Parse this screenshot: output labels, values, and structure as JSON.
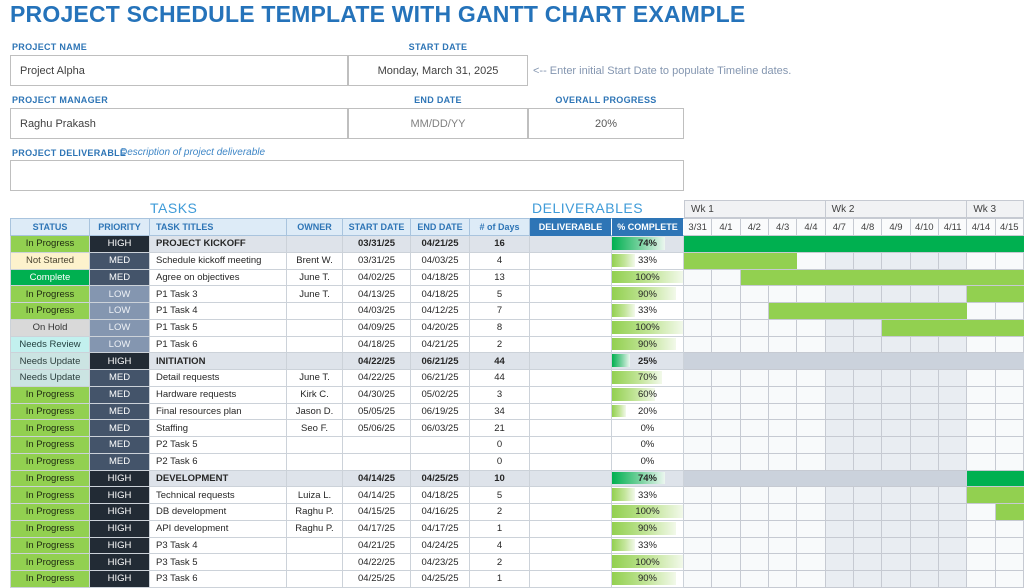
{
  "title": "PROJECT SCHEDULE TEMPLATE WITH GANTT CHART EXAMPLE",
  "form": {
    "project_name_label": "PROJECT NAME",
    "project_name": "Project Alpha",
    "start_date_label": "START DATE",
    "start_date": "Monday, March 31, 2025",
    "start_date_note": "<-- Enter initial Start Date to populate Timeline dates.",
    "project_manager_label": "PROJECT MANAGER",
    "project_manager": "Raghu Prakash",
    "end_date_label": "END DATE",
    "end_date": "MM/DD/YY",
    "overall_progress_label": "OVERALL PROGRESS",
    "overall_progress": "20%",
    "project_deliverable_label": "PROJECT DELIVERABLE",
    "project_deliverable_hint": "Description of project deliverable",
    "project_deliverable": ""
  },
  "sections": {
    "tasks": "TASKS",
    "deliverables": "DELIVERABLES"
  },
  "table": {
    "headers": [
      "STATUS",
      "PRIORITY",
      "TASK TITLES",
      "OWNER",
      "START DATE",
      "END DATE",
      "# of Days",
      "DELIVERABLE",
      "% COMPLETE"
    ],
    "rows": [
      {
        "status": "In Progress",
        "priority": "HIGH",
        "task": "PROJECT KICKOFF",
        "owner": "",
        "start": "03/31/25",
        "end": "04/21/25",
        "days": "16",
        "deliverable": "",
        "pct": 74,
        "pct_label": "74%",
        "summary": true,
        "bar": {
          "from": 0,
          "to": 12,
          "kind": "dark"
        }
      },
      {
        "status": "Not Started",
        "priority": "MED",
        "task": "Schedule kickoff meeting",
        "owner": "Brent W.",
        "start": "03/31/25",
        "end": "04/03/25",
        "days": "4",
        "deliverable": "",
        "pct": 33,
        "pct_label": "33%",
        "summary": false,
        "bar": {
          "from": 0,
          "to": 4,
          "kind": "light"
        }
      },
      {
        "status": "Complete",
        "priority": "MED",
        "task": "Agree on objectives",
        "owner": "June T.",
        "start": "04/02/25",
        "end": "04/18/25",
        "days": "13",
        "deliverable": "",
        "pct": 100,
        "pct_label": "100%",
        "summary": false,
        "bar": {
          "from": 2,
          "to": 12,
          "kind": "light"
        }
      },
      {
        "status": "In Progress",
        "priority": "LOW",
        "task": "P1 Task 3",
        "owner": "June T.",
        "start": "04/13/25",
        "end": "04/18/25",
        "days": "5",
        "deliverable": "",
        "pct": 90,
        "pct_label": "90%",
        "summary": false,
        "bar": {
          "from": 10,
          "to": 12,
          "kind": "light"
        }
      },
      {
        "status": "In Progress",
        "priority": "LOW",
        "task": "P1 Task 4",
        "owner": "",
        "start": "04/03/25",
        "end": "04/12/25",
        "days": "7",
        "deliverable": "",
        "pct": 33,
        "pct_label": "33%",
        "summary": false,
        "bar": {
          "from": 3,
          "to": 10,
          "kind": "light"
        }
      },
      {
        "status": "On Hold",
        "priority": "LOW",
        "task": "P1 Task 5",
        "owner": "",
        "start": "04/09/25",
        "end": "04/20/25",
        "days": "8",
        "deliverable": "",
        "pct": 100,
        "pct_label": "100%",
        "summary": false,
        "bar": {
          "from": 7,
          "to": 12,
          "kind": "light"
        }
      },
      {
        "status": "Needs Review",
        "priority": "LOW",
        "task": "P1 Task 6",
        "owner": "",
        "start": "04/18/25",
        "end": "04/21/25",
        "days": "2",
        "deliverable": "",
        "pct": 90,
        "pct_label": "90%",
        "summary": false,
        "bar": null
      },
      {
        "status": "Needs Update",
        "priority": "HIGH",
        "task": "INITIATION",
        "owner": "",
        "start": "04/22/25",
        "end": "06/21/25",
        "days": "44",
        "deliverable": "",
        "pct": 25,
        "pct_label": "25%",
        "summary": true,
        "bar": null
      },
      {
        "status": "Needs Update",
        "priority": "MED",
        "task": "Detail requests",
        "owner": "June T.",
        "start": "04/22/25",
        "end": "06/21/25",
        "days": "44",
        "deliverable": "",
        "pct": 70,
        "pct_label": "70%",
        "summary": false,
        "bar": null
      },
      {
        "status": "In Progress",
        "priority": "MED",
        "task": "Hardware requests",
        "owner": "Kirk C.",
        "start": "04/30/25",
        "end": "05/02/25",
        "days": "3",
        "deliverable": "",
        "pct": 60,
        "pct_label": "60%",
        "summary": false,
        "bar": null
      },
      {
        "status": "In Progress",
        "priority": "MED",
        "task": "Final resources plan",
        "owner": "Jason D.",
        "start": "05/05/25",
        "end": "06/19/25",
        "days": "34",
        "deliverable": "",
        "pct": 20,
        "pct_label": "20%",
        "summary": false,
        "bar": null
      },
      {
        "status": "In Progress",
        "priority": "MED",
        "task": "Staffing",
        "owner": "Seo F.",
        "start": "05/06/25",
        "end": "06/03/25",
        "days": "21",
        "deliverable": "",
        "pct": 0,
        "pct_label": "0%",
        "summary": false,
        "bar": null
      },
      {
        "status": "In Progress",
        "priority": "MED",
        "task": "P2 Task 5",
        "owner": "",
        "start": "",
        "end": "",
        "days": "0",
        "deliverable": "",
        "pct": 0,
        "pct_label": "0%",
        "summary": false,
        "bar": null
      },
      {
        "status": "In Progress",
        "priority": "MED",
        "task": "P2 Task 6",
        "owner": "",
        "start": "",
        "end": "",
        "days": "0",
        "deliverable": "",
        "pct": 0,
        "pct_label": "0%",
        "summary": false,
        "bar": null
      },
      {
        "status": "In Progress",
        "priority": "HIGH",
        "task": "DEVELOPMENT",
        "owner": "",
        "start": "04/14/25",
        "end": "04/25/25",
        "days": "10",
        "deliverable": "",
        "pct": 74,
        "pct_label": "74%",
        "summary": true,
        "bar": {
          "from": 10,
          "to": 12,
          "kind": "dark"
        }
      },
      {
        "status": "In Progress",
        "priority": "HIGH",
        "task": "Technical requests",
        "owner": "Luiza L.",
        "start": "04/14/25",
        "end": "04/18/25",
        "days": "5",
        "deliverable": "",
        "pct": 33,
        "pct_label": "33%",
        "summary": false,
        "bar": {
          "from": 10,
          "to": 12,
          "kind": "light"
        }
      },
      {
        "status": "In Progress",
        "priority": "HIGH",
        "task": "DB development",
        "owner": "Raghu P.",
        "start": "04/15/25",
        "end": "04/16/25",
        "days": "2",
        "deliverable": "",
        "pct": 100,
        "pct_label": "100%",
        "summary": false,
        "bar": {
          "from": 11,
          "to": 12,
          "kind": "light"
        }
      },
      {
        "status": "In Progress",
        "priority": "HIGH",
        "task": "API development",
        "owner": "Raghu P.",
        "start": "04/17/25",
        "end": "04/17/25",
        "days": "1",
        "deliverable": "",
        "pct": 90,
        "pct_label": "90%",
        "summary": false,
        "bar": null
      },
      {
        "status": "In Progress",
        "priority": "HIGH",
        "task": "P3 Task 4",
        "owner": "",
        "start": "04/21/25",
        "end": "04/24/25",
        "days": "4",
        "deliverable": "",
        "pct": 33,
        "pct_label": "33%",
        "summary": false,
        "bar": null
      },
      {
        "status": "In Progress",
        "priority": "HIGH",
        "task": "P3 Task 5",
        "owner": "",
        "start": "04/22/25",
        "end": "04/23/25",
        "days": "2",
        "deliverable": "",
        "pct": 100,
        "pct_label": "100%",
        "summary": false,
        "bar": null
      },
      {
        "status": "In Progress",
        "priority": "HIGH",
        "task": "P3 Task 6",
        "owner": "",
        "start": "04/25/25",
        "end": "04/25/25",
        "days": "1",
        "deliverable": "",
        "pct": 90,
        "pct_label": "90%",
        "summary": false,
        "bar": null
      }
    ]
  },
  "gantt": {
    "weeks": [
      {
        "label": "Wk 1",
        "span": 5
      },
      {
        "label": "Wk 2",
        "span": 5
      },
      {
        "label": "Wk 3",
        "span": 2
      }
    ],
    "dates": [
      "3/31",
      "4/1",
      "4/2",
      "4/3",
      "4/4",
      "4/7",
      "4/8",
      "4/9",
      "4/10",
      "4/11",
      "4/14",
      "4/15"
    ],
    "shaded_week_index": 1
  },
  "colors": {
    "accent_blue": "#2E75B6",
    "title_blue": "#2573BA",
    "section_blue": "#3F9BD8",
    "header_fill": "#DDEBF7",
    "header_strong_fill": "#2E75B6",
    "dark_green": "#00B050",
    "light_green": "#92D050",
    "summary_row_fill": "#DEE3EA",
    "gantt_band": "#CBD2DC",
    "week_shade": "#E9EDF2",
    "status": {
      "In Progress": {
        "bg": "#92D050",
        "fg": "#1f2a12"
      },
      "Not Started": {
        "bg": "#FDF2CC",
        "fg": "#4a4430"
      },
      "Complete": {
        "bg": "#00B050",
        "fg": "#ffffff"
      },
      "On Hold": {
        "bg": "#D9D9D9",
        "fg": "#333333"
      },
      "Needs Review": {
        "bg": "#C2F0EE",
        "fg": "#24403f"
      },
      "Needs Update": {
        "bg": "#CBE4E2",
        "fg": "#2b3d3c"
      }
    },
    "priority": {
      "HIGH": {
        "bg": "#222B35",
        "fg": "#ffffff"
      },
      "MED": {
        "bg": "#44546A",
        "fg": "#ffffff"
      },
      "LOW": {
        "bg": "#8496B0",
        "fg": "#eef1f6"
      }
    }
  }
}
